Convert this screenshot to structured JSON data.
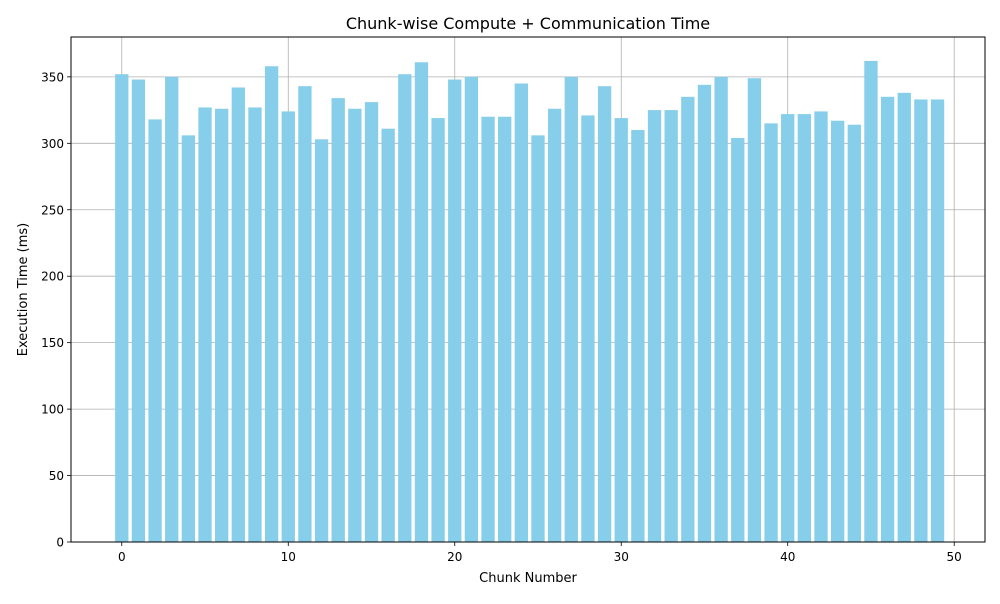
{
  "chart_data": {
    "type": "bar",
    "title": "Chunk-wise Compute + Communication Time",
    "xlabel": "Chunk Number",
    "ylabel": "Execution Time (ms)",
    "x": [
      0,
      1,
      2,
      3,
      4,
      5,
      6,
      7,
      8,
      9,
      10,
      11,
      12,
      13,
      14,
      15,
      16,
      17,
      18,
      19,
      20,
      21,
      22,
      23,
      24,
      25,
      26,
      27,
      28,
      29,
      30,
      31,
      32,
      33,
      34,
      35,
      36,
      37,
      38,
      39,
      40,
      41,
      42,
      43,
      44,
      45,
      46,
      47,
      48,
      49
    ],
    "values": [
      352,
      348,
      318,
      350,
      306,
      327,
      326,
      342,
      327,
      358,
      324,
      343,
      303,
      334,
      326,
      331,
      311,
      352,
      361,
      319,
      348,
      350,
      320,
      320,
      345,
      306,
      326,
      350,
      321,
      343,
      319,
      310,
      325,
      325,
      335,
      344,
      350,
      304,
      349,
      315,
      322,
      322,
      324,
      317,
      314,
      362,
      335,
      338,
      333,
      333
    ],
    "xlim": [
      -3.05,
      51.85
    ],
    "ylim": [
      0,
      380
    ],
    "xticks": [
      0,
      10,
      20,
      30,
      40,
      50
    ],
    "xtick_labels": [
      "0",
      "10",
      "20",
      "30",
      "40",
      "50"
    ],
    "yticks": [
      0,
      50,
      100,
      150,
      200,
      250,
      300,
      350
    ],
    "ytick_labels": [
      "0",
      "50",
      "100",
      "150",
      "200",
      "250",
      "300",
      "350"
    ],
    "grid": true,
    "bar_color": "#87ceeb",
    "bar_width": 0.8
  }
}
